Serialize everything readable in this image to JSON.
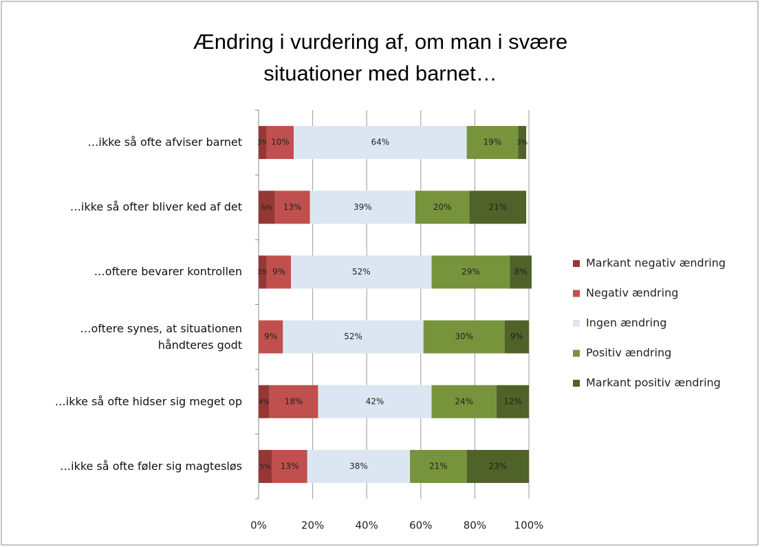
{
  "chart_data": {
    "type": "stacked_barh",
    "title": "Ændring i vurdering af, om man i svære situationer med barnet…",
    "categories": [
      "…ikke så ofte afviser barnet",
      "…ikke så ofter bliver ked af det",
      "…oftere bevarer kontrollen",
      "…oftere synes, at situationen håndteres godt",
      "…ikke så ofte hidser sig meget op",
      "…ikke så ofte føler sig magtesløs"
    ],
    "series": [
      {
        "name": "Markant negativ ændring",
        "color": "#953735",
        "values": [
          3,
          6,
          3,
          null,
          4,
          5
        ],
        "value_labels": [
          "3%",
          "6%",
          "3%",
          null,
          "4%",
          "5%"
        ]
      },
      {
        "name": "Negativ ændring",
        "color": "#c0504d",
        "values": [
          10,
          13,
          9,
          9,
          18,
          13
        ],
        "value_labels": [
          "10%",
          "13%",
          "9%",
          "9%",
          "18%",
          "13%"
        ]
      },
      {
        "name": "Ingen ændring",
        "color": "#dce6f2",
        "values": [
          64,
          39,
          52,
          52,
          42,
          38
        ],
        "value_labels": [
          "64%",
          "39%",
          "52%",
          "52%",
          "42%",
          "38%"
        ]
      },
      {
        "name": "Positiv ændring",
        "color": "#77933c",
        "values": [
          19,
          20,
          29,
          30,
          24,
          21
        ],
        "value_labels": [
          "19%",
          "20%",
          "29%",
          "30%",
          "24%",
          "21%"
        ]
      },
      {
        "name": "Markant positiv ændring",
        "color": "#4f6228",
        "values": [
          3,
          21,
          8,
          9,
          12,
          23
        ],
        "value_labels": [
          "3%",
          "21%",
          "8%",
          "9%",
          "12%",
          "23%"
        ]
      }
    ],
    "xlim": [
      0,
      100
    ],
    "xticks": [
      {
        "value": 0,
        "label": "0%"
      },
      {
        "value": 20,
        "label": "20%"
      },
      {
        "value": 40,
        "label": "40%"
      },
      {
        "value": 60,
        "label": "60%"
      },
      {
        "value": 80,
        "label": "80%"
      },
      {
        "value": 100,
        "label": "100%"
      }
    ],
    "grid": true,
    "legend": "right"
  }
}
